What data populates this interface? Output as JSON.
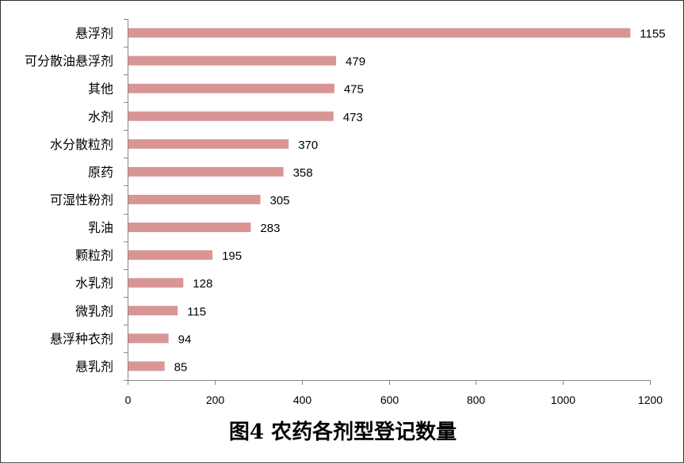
{
  "chart_data": {
    "type": "bar",
    "orientation": "horizontal",
    "title": "图4 农药各剂型登记数量",
    "categories": [
      "悬浮剂",
      "可分散油悬浮剂",
      "其他",
      "水剂",
      "水分散粒剂",
      "原药",
      "可湿性粉剂",
      "乳油",
      "颗粒剂",
      "水乳剂",
      "微乳剂",
      "悬浮种衣剂",
      "悬乳剂"
    ],
    "values": [
      1155,
      479,
      475,
      473,
      370,
      358,
      305,
      283,
      195,
      128,
      115,
      94,
      85
    ],
    "xlim": [
      0,
      1200
    ],
    "xticks": [
      0,
      200,
      400,
      600,
      800,
      1000,
      1200
    ],
    "grid": false,
    "legend": "none",
    "bar_color": "#D99594",
    "axis_color": "#868686"
  }
}
